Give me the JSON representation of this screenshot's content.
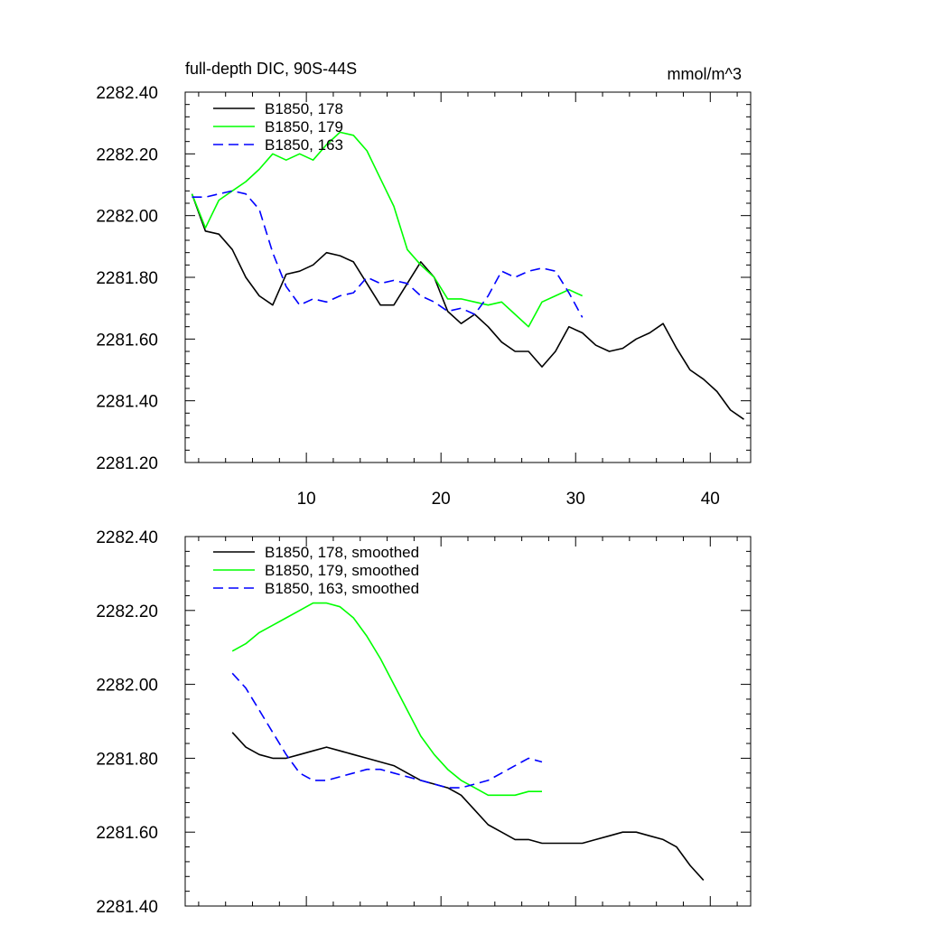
{
  "chart_data": [
    {
      "type": "line",
      "title": "full-depth DIC, 90S-44S",
      "units_label": "mmol/m^3",
      "xlim": [
        1,
        43
      ],
      "ylim": [
        2281.2,
        2282.4
      ],
      "xticks": [
        10,
        20,
        30,
        40
      ],
      "xtick_labels": [
        "10",
        "20",
        "30",
        "40"
      ],
      "yticks": [
        2281.2,
        2281.4,
        2281.6,
        2281.8,
        2282.0,
        2282.2,
        2282.4
      ],
      "ytick_labels": [
        "2281.20",
        "2281.40",
        "2281.60",
        "2281.80",
        "2282.00",
        "2282.20",
        "2282.40"
      ],
      "grid": false,
      "legend_position": "top-left",
      "series": [
        {
          "name": "B1850, 178",
          "color": "#000000",
          "dash": "solid",
          "x": [
            1.5,
            2.5,
            3.5,
            4.5,
            5.5,
            6.5,
            7.5,
            8.5,
            9.5,
            10.5,
            11.5,
            12.5,
            13.5,
            14.5,
            15.5,
            16.5,
            17.5,
            18.5,
            19.5,
            20.5,
            21.5,
            22.5,
            23.5,
            24.5,
            25.5,
            26.5,
            27.5,
            28.5,
            29.5,
            30.5,
            31.5,
            32.5,
            33.5,
            34.5,
            35.5,
            36.5,
            37.5,
            38.5,
            39.5,
            40.5,
            41.5,
            42.5
          ],
          "values": [
            2282.07,
            2281.95,
            2281.94,
            2281.89,
            2281.8,
            2281.74,
            2281.71,
            2281.81,
            2281.82,
            2281.84,
            2281.88,
            2281.87,
            2281.85,
            2281.78,
            2281.71,
            2281.71,
            2281.78,
            2281.85,
            2281.8,
            2281.69,
            2281.65,
            2281.68,
            2281.64,
            2281.59,
            2281.56,
            2281.56,
            2281.51,
            2281.56,
            2281.64,
            2281.62,
            2281.58,
            2281.56,
            2281.57,
            2281.6,
            2281.62,
            2281.65,
            2281.57,
            2281.5,
            2281.47,
            2281.43,
            2281.37,
            2281.34
          ]
        },
        {
          "name": "B1850, 179",
          "color": "#00ff00",
          "dash": "solid",
          "x": [
            1.5,
            2.5,
            3.5,
            4.5,
            5.5,
            6.5,
            7.5,
            8.5,
            9.5,
            10.5,
            11.5,
            12.5,
            13.5,
            14.5,
            15.5,
            16.5,
            17.5,
            18.5,
            19.5,
            20.5,
            21.5,
            22.5,
            23.5,
            24.5,
            25.5,
            26.5,
            27.5,
            28.5,
            29.5,
            30.5
          ],
          "values": [
            2282.07,
            2281.96,
            2282.05,
            2282.08,
            2282.11,
            2282.15,
            2282.2,
            2282.18,
            2282.2,
            2282.18,
            2282.23,
            2282.27,
            2282.26,
            2282.21,
            2282.12,
            2282.03,
            2281.89,
            2281.84,
            2281.8,
            2281.73,
            2281.73,
            2281.72,
            2281.71,
            2281.72,
            2281.68,
            2281.64,
            2281.72,
            2281.74,
            2281.76,
            2281.74
          ]
        },
        {
          "name": "B1850, 163",
          "color": "#0000ff",
          "dash": "dashed",
          "x": [
            1.5,
            2.5,
            3.5,
            4.5,
            5.5,
            6.5,
            7.5,
            8.5,
            9.5,
            10.5,
            11.5,
            12.5,
            13.5,
            14.5,
            15.5,
            16.5,
            17.5,
            18.5,
            19.5,
            20.5,
            21.5,
            22.5,
            23.5,
            24.5,
            25.5,
            26.5,
            27.5,
            28.5,
            29.5,
            30.5
          ],
          "values": [
            2282.06,
            2282.06,
            2282.07,
            2282.08,
            2282.07,
            2282.02,
            2281.88,
            2281.77,
            2281.71,
            2281.73,
            2281.72,
            2281.74,
            2281.75,
            2281.8,
            2281.78,
            2281.79,
            2281.78,
            2281.74,
            2281.72,
            2281.69,
            2281.7,
            2281.68,
            2281.74,
            2281.82,
            2281.8,
            2281.82,
            2281.83,
            2281.82,
            2281.75,
            2281.67
          ]
        }
      ]
    },
    {
      "type": "line",
      "xlim": [
        1,
        43
      ],
      "ylim": [
        2281.4,
        2282.4
      ],
      "xticks": [
        10,
        20,
        30,
        40
      ],
      "yticks": [
        2281.4,
        2281.6,
        2281.8,
        2282.0,
        2282.2,
        2282.4
      ],
      "ytick_labels": [
        "2281.40",
        "2281.60",
        "2281.80",
        "2282.00",
        "2282.20",
        "2282.40"
      ],
      "grid": false,
      "legend_position": "top-left",
      "series": [
        {
          "name": "B1850, 178, smoothed",
          "color": "#000000",
          "dash": "solid",
          "x": [
            4.5,
            5.5,
            6.5,
            7.5,
            8.5,
            9.5,
            10.5,
            11.5,
            12.5,
            13.5,
            14.5,
            15.5,
            16.5,
            17.5,
            18.5,
            19.5,
            20.5,
            21.5,
            22.5,
            23.5,
            24.5,
            25.5,
            26.5,
            27.5,
            28.5,
            29.5,
            30.5,
            31.5,
            32.5,
            33.5,
            34.5,
            35.5,
            36.5,
            37.5,
            38.5,
            39.5
          ],
          "values": [
            2281.87,
            2281.83,
            2281.81,
            2281.8,
            2281.8,
            2281.81,
            2281.82,
            2281.83,
            2281.82,
            2281.81,
            2281.8,
            2281.79,
            2281.78,
            2281.76,
            2281.74,
            2281.73,
            2281.72,
            2281.7,
            2281.66,
            2281.62,
            2281.6,
            2281.58,
            2281.58,
            2281.57,
            2281.57,
            2281.57,
            2281.57,
            2281.58,
            2281.59,
            2281.6,
            2281.6,
            2281.59,
            2281.58,
            2281.56,
            2281.51,
            2281.47
          ]
        },
        {
          "name": "B1850, 179, smoothed",
          "color": "#00ff00",
          "dash": "solid",
          "x": [
            4.5,
            5.5,
            6.5,
            7.5,
            8.5,
            9.5,
            10.5,
            11.5,
            12.5,
            13.5,
            14.5,
            15.5,
            16.5,
            17.5,
            18.5,
            19.5,
            20.5,
            21.5,
            22.5,
            23.5,
            24.5,
            25.5,
            26.5,
            27.5
          ],
          "values": [
            2282.09,
            2282.11,
            2282.14,
            2282.16,
            2282.18,
            2282.2,
            2282.22,
            2282.22,
            2282.21,
            2282.18,
            2282.13,
            2282.07,
            2282.0,
            2281.93,
            2281.86,
            2281.81,
            2281.77,
            2281.74,
            2281.72,
            2281.7,
            2281.7,
            2281.7,
            2281.71,
            2281.71
          ]
        },
        {
          "name": "B1850, 163, smoothed",
          "color": "#0000ff",
          "dash": "dashed",
          "x": [
            4.5,
            5.5,
            6.5,
            7.5,
            8.5,
            9.5,
            10.5,
            11.5,
            12.5,
            13.5,
            14.5,
            15.5,
            16.5,
            17.5,
            18.5,
            19.5,
            20.5,
            21.5,
            22.5,
            23.5,
            24.5,
            25.5,
            26.5,
            27.5
          ],
          "values": [
            2282.03,
            2281.99,
            2281.93,
            2281.87,
            2281.81,
            2281.76,
            2281.74,
            2281.74,
            2281.75,
            2281.76,
            2281.77,
            2281.77,
            2281.76,
            2281.75,
            2281.74,
            2281.73,
            2281.72,
            2281.72,
            2281.73,
            2281.74,
            2281.76,
            2281.78,
            2281.8,
            2281.79
          ]
        }
      ]
    }
  ]
}
